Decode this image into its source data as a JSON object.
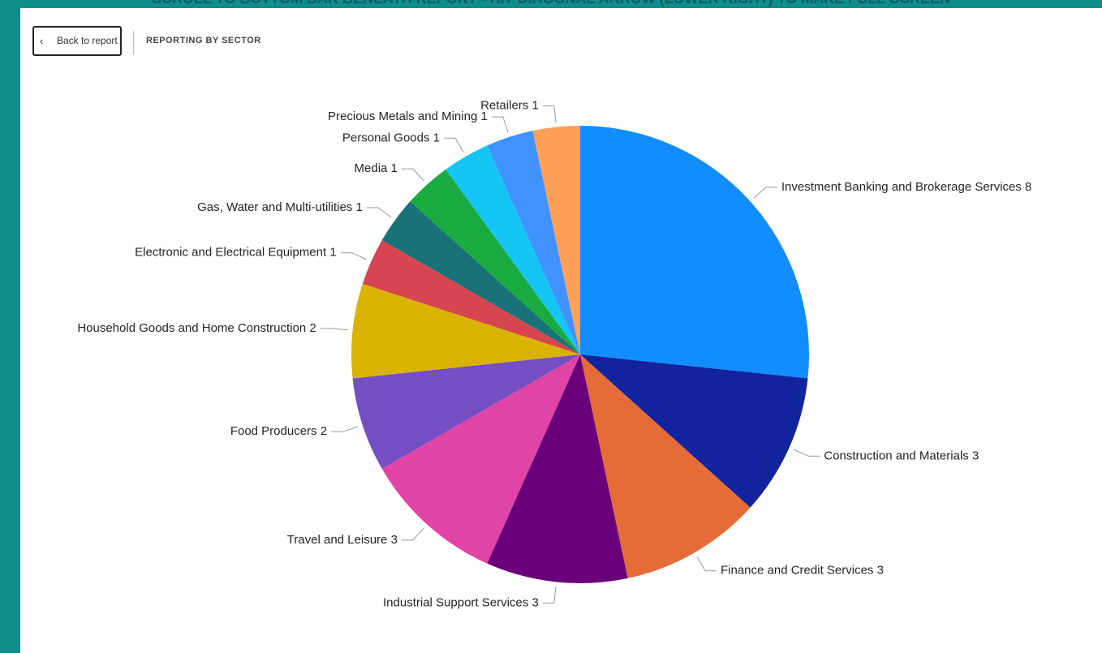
{
  "banner": "SCROLL TO BOTTOM BAR BENEATH REPORT - HIT DIAGONAL ARROW (LOWER RIGHT) TO MAKE FULL SCREEN",
  "back_button": "Back to report",
  "page_title": "REPORTING BY SECTOR",
  "chart_data": {
    "type": "pie",
    "categories": [
      "Investment Banking and Brokerage Services",
      "Construction and Materials",
      "Finance and Credit Services",
      "Industrial Support Services",
      "Travel and Leisure",
      "Food Producers",
      "Household Goods and Home Construction",
      "Electronic and Electrical Equipment",
      "Gas, Water and Multi-utilities",
      "Media",
      "Personal Goods",
      "Precious Metals and Mining",
      "Retailers"
    ],
    "values": [
      8,
      3,
      3,
      3,
      3,
      2,
      2,
      1,
      1,
      1,
      1,
      1,
      1
    ],
    "colors": [
      "#118DFF",
      "#12239E",
      "#E66C37",
      "#6B007B",
      "#E044A7",
      "#744EC2",
      "#D9B300",
      "#D64550",
      "#197278",
      "#1AAB40",
      "#15C6F4",
      "#4092FF",
      "#FFA058"
    ]
  }
}
